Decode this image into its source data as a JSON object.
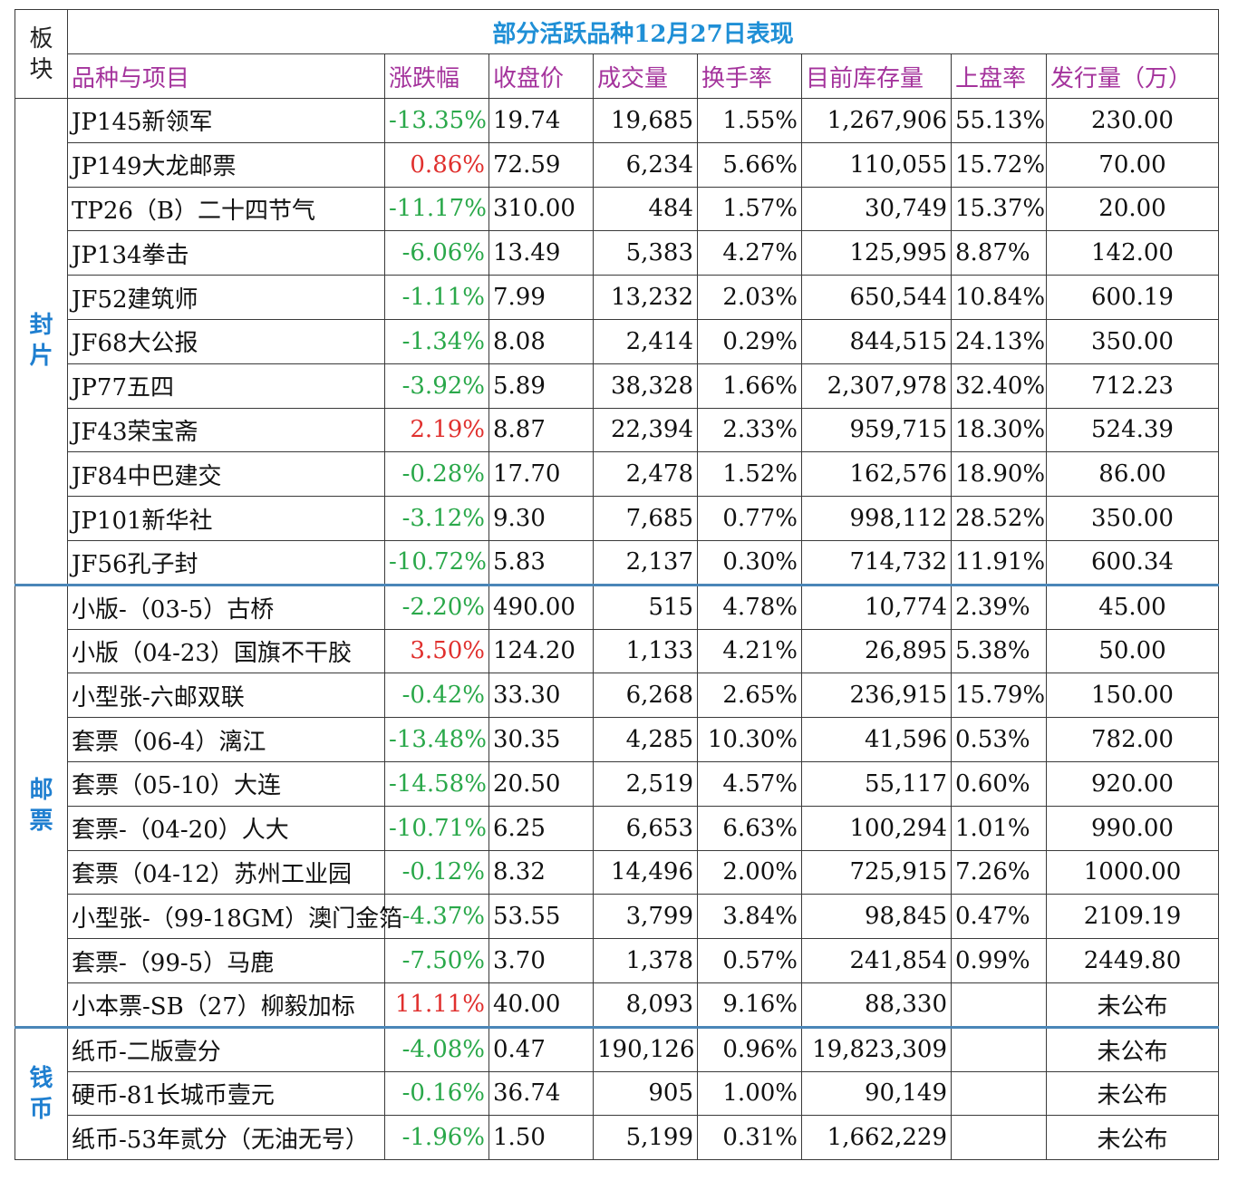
{
  "title": "部分活跃品种12月27日表现",
  "corner_label": "板块",
  "headers": [
    "品种与项目",
    "涨跌幅",
    "收盘价",
    "成交量",
    "换手率",
    "目前库存量",
    "上盘率",
    "发行量（万）"
  ],
  "colors": {
    "title": "#1f8fd6",
    "header": "#a4339c",
    "sector": "#1f7fd0",
    "down": "#2aa84a",
    "up": "#e0302e",
    "group_divider": "#4a86b8"
  },
  "groups": [
    {
      "sector": "封片",
      "rows": [
        {
          "name": "JP145新领军",
          "chg": "-13.35%",
          "dir": "down",
          "price": "19.74",
          "vol": "19,685",
          "turn": "1.55%",
          "stock": "1,267,906",
          "rate": "55.13%",
          "issue": "230.00"
        },
        {
          "name": "JP149大龙邮票",
          "chg": "0.86%",
          "dir": "up",
          "price": "72.59",
          "vol": "6,234",
          "turn": "5.66%",
          "stock": "110,055",
          "rate": "15.72%",
          "issue": "70.00"
        },
        {
          "name": "TP26（B）二十四节气",
          "chg": "-11.17%",
          "dir": "down",
          "price": "310.00",
          "vol": "484",
          "turn": "1.57%",
          "stock": "30,749",
          "rate": "15.37%",
          "issue": "20.00"
        },
        {
          "name": "JP134拳击",
          "chg": "-6.06%",
          "dir": "down",
          "price": "13.49",
          "vol": "5,383",
          "turn": "4.27%",
          "stock": "125,995",
          "rate": "8.87%",
          "issue": "142.00"
        },
        {
          "name": "JF52建筑师",
          "chg": "-1.11%",
          "dir": "down",
          "price": "7.99",
          "vol": "13,232",
          "turn": "2.03%",
          "stock": "650,544",
          "rate": "10.84%",
          "issue": "600.19"
        },
        {
          "name": "JF68大公报",
          "chg": "-1.34%",
          "dir": "down",
          "price": "8.08",
          "vol": "2,414",
          "turn": "0.29%",
          "stock": "844,515",
          "rate": "24.13%",
          "issue": "350.00"
        },
        {
          "name": "JP77五四",
          "chg": "-3.92%",
          "dir": "down",
          "price": "5.89",
          "vol": "38,328",
          "turn": "1.66%",
          "stock": "2,307,978",
          "rate": "32.40%",
          "issue": "712.23"
        },
        {
          "name": "JF43荣宝斋",
          "chg": "2.19%",
          "dir": "up",
          "price": "8.87",
          "vol": "22,394",
          "turn": "2.33%",
          "stock": "959,715",
          "rate": "18.30%",
          "issue": "524.39"
        },
        {
          "name": "JF84中巴建交",
          "chg": "-0.28%",
          "dir": "down",
          "price": "17.70",
          "vol": "2,478",
          "turn": "1.52%",
          "stock": "162,576",
          "rate": "18.90%",
          "issue": "86.00"
        },
        {
          "name": "JP101新华社",
          "chg": "-3.12%",
          "dir": "down",
          "price": "9.30",
          "vol": "7,685",
          "turn": "0.77%",
          "stock": "998,112",
          "rate": "28.52%",
          "issue": "350.00"
        },
        {
          "name": "JF56孔子封",
          "chg": "-10.72%",
          "dir": "down",
          "price": "5.83",
          "vol": "2,137",
          "turn": "0.30%",
          "stock": "714,732",
          "rate": "11.91%",
          "issue": "600.34"
        }
      ]
    },
    {
      "sector": "邮票",
      "rows": [
        {
          "name": "小版-（03-5）古桥",
          "chg": "-2.20%",
          "dir": "down",
          "price": "490.00",
          "vol": "515",
          "turn": "4.78%",
          "stock": "10,774",
          "rate": "2.39%",
          "issue": "45.00"
        },
        {
          "name": "小版（04-23）国旗不干胶",
          "chg": "3.50%",
          "dir": "up",
          "price": "124.20",
          "vol": "1,133",
          "turn": "4.21%",
          "stock": "26,895",
          "rate": "5.38%",
          "issue": "50.00"
        },
        {
          "name": "小型张-六邮双联",
          "chg": "-0.42%",
          "dir": "down",
          "price": "33.30",
          "vol": "6,268",
          "turn": "2.65%",
          "stock": "236,915",
          "rate": "15.79%",
          "issue": "150.00"
        },
        {
          "name": "套票（06-4）漓江",
          "chg": "-13.48%",
          "dir": "down",
          "price": "30.35",
          "vol": "4,285",
          "turn": "10.30%",
          "stock": "41,596",
          "rate": "0.53%",
          "issue": "782.00"
        },
        {
          "name": "套票（05-10）大连",
          "chg": "-14.58%",
          "dir": "down",
          "price": "20.50",
          "vol": "2,519",
          "turn": "4.57%",
          "stock": "55,117",
          "rate": "0.60%",
          "issue": "920.00"
        },
        {
          "name": "套票-（04-20）人大",
          "chg": "-10.71%",
          "dir": "down",
          "price": "6.25",
          "vol": "6,653",
          "turn": "6.63%",
          "stock": "100,294",
          "rate": "1.01%",
          "issue": "990.00"
        },
        {
          "name": "套票（04-12）苏州工业园",
          "chg": "-0.12%",
          "dir": "down",
          "price": "8.32",
          "vol": "14,496",
          "turn": "2.00%",
          "stock": "725,915",
          "rate": "7.26%",
          "issue": "1000.00"
        },
        {
          "name": "小型张-（99-18GM）澳门金箔",
          "chg": "-4.37%",
          "dir": "down",
          "price": "53.55",
          "vol": "3,799",
          "turn": "3.84%",
          "stock": "98,845",
          "rate": "0.47%",
          "issue": "2109.19"
        },
        {
          "name": "套票-（99-5）马鹿",
          "chg": "-7.50%",
          "dir": "down",
          "price": "3.70",
          "vol": "1,378",
          "turn": "0.57%",
          "stock": "241,854",
          "rate": "0.99%",
          "issue": "2449.80"
        },
        {
          "name": "小本票-SB（27）柳毅加标",
          "chg": "11.11%",
          "dir": "up",
          "price": "40.00",
          "vol": "8,093",
          "turn": "9.16%",
          "stock": "88,330",
          "rate": "",
          "issue": "未公布"
        }
      ]
    },
    {
      "sector": "钱币",
      "rows": [
        {
          "name": "纸币-二版壹分",
          "chg": "-4.08%",
          "dir": "down",
          "price": "0.47",
          "vol": "190,126",
          "turn": "0.96%",
          "stock": "19,823,309",
          "rate": "",
          "issue": "未公布"
        },
        {
          "name": "硬币-81长城币壹元",
          "chg": "-0.16%",
          "dir": "down",
          "price": "36.74",
          "vol": "905",
          "turn": "1.00%",
          "stock": "90,149",
          "rate": "",
          "issue": "未公布"
        },
        {
          "name": "纸币-53年贰分（无油无号）",
          "chg": "-1.96%",
          "dir": "down",
          "price": "1.50",
          "vol": "5,199",
          "turn": "0.31%",
          "stock": "1,662,229",
          "rate": "",
          "issue": "未公布"
        }
      ]
    }
  ]
}
